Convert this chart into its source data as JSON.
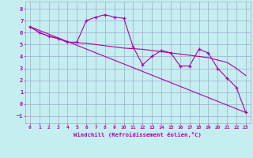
{
  "xlabel": "Windchill (Refroidissement éolien,°C)",
  "bg_color": "#c5eef0",
  "grid_color": "#a0aad0",
  "line_color": "#aa00aa",
  "xlim": [
    -0.5,
    23.5
  ],
  "ylim": [
    -1.6,
    8.6
  ],
  "xticks": [
    0,
    1,
    2,
    3,
    4,
    5,
    6,
    7,
    8,
    9,
    10,
    11,
    12,
    13,
    14,
    15,
    16,
    17,
    18,
    19,
    20,
    21,
    22,
    23
  ],
  "yticks": [
    -1,
    0,
    1,
    2,
    3,
    4,
    5,
    6,
    7,
    8
  ],
  "line1_x": [
    0,
    1,
    2,
    3,
    4,
    5,
    6,
    7,
    8,
    9,
    10,
    11,
    12,
    13,
    14,
    15,
    16,
    17,
    18,
    19,
    20,
    21,
    22,
    23
  ],
  "line1_y": [
    6.5,
    6.0,
    5.7,
    5.5,
    5.2,
    5.2,
    7.0,
    7.3,
    7.5,
    7.3,
    7.2,
    4.8,
    3.3,
    4.0,
    4.5,
    4.3,
    3.2,
    3.2,
    4.6,
    4.3,
    3.0,
    2.2,
    1.4,
    -0.7
  ],
  "line2_x": [
    0,
    1,
    2,
    3,
    4,
    5,
    6,
    7,
    8,
    9,
    10,
    11,
    12,
    13,
    14,
    15,
    16,
    17,
    18,
    19,
    20,
    21,
    22,
    23
  ],
  "line2_y": [
    6.5,
    6.0,
    5.7,
    5.5,
    5.2,
    5.15,
    5.1,
    5.0,
    4.9,
    4.8,
    4.7,
    4.65,
    4.6,
    4.5,
    4.4,
    4.3,
    4.2,
    4.1,
    4.0,
    3.9,
    3.7,
    3.5,
    3.0,
    2.4
  ],
  "line3_x": [
    0,
    23
  ],
  "line3_y": [
    6.5,
    -0.7
  ]
}
